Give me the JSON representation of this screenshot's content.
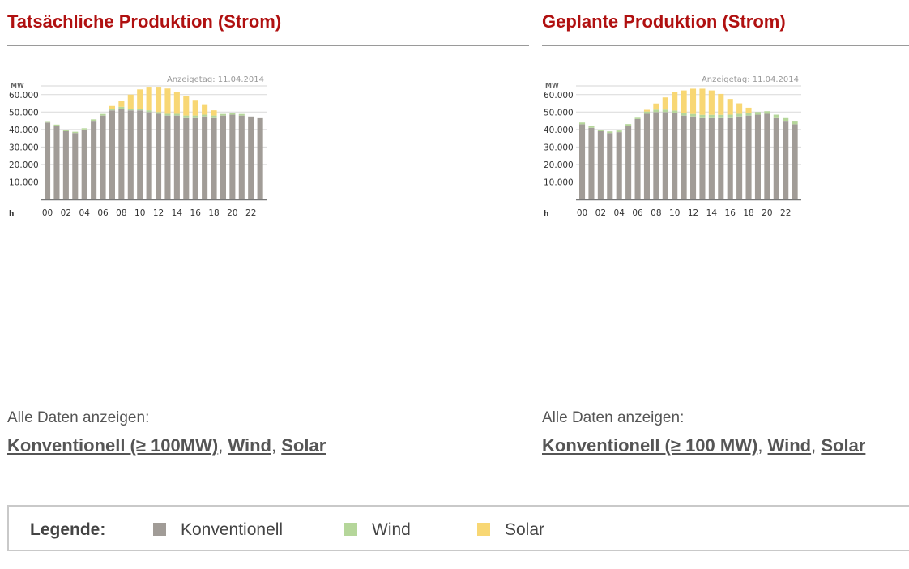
{
  "colors": {
    "title": "#b01010",
    "conventional": "#a19c97",
    "wind": "#b5d69a",
    "solar": "#f8d774"
  },
  "panels": [
    {
      "title": "Tatsächliche Produktion (Strom)",
      "all_data_label": "Alle Daten anzeigen:",
      "link_conventional": "Konventionell (≥ 100MW)",
      "link_wind": "Wind",
      "link_solar": "Solar"
    },
    {
      "title": "Geplante Produktion (Strom)",
      "all_data_label": "Alle Daten anzeigen:",
      "link_conventional": "Konventionell (≥ 100 MW)",
      "link_wind": "Wind",
      "link_solar": "Solar"
    }
  ],
  "legend": {
    "title": "Legende:",
    "items": [
      {
        "label": "Konventionell",
        "color": "#a19c97"
      },
      {
        "label": "Wind",
        "color": "#b5d69a"
      },
      {
        "label": "Solar",
        "color": "#f8d774"
      }
    ]
  },
  "chart_data": [
    {
      "type": "bar",
      "stacked": true,
      "display_date": "Anzeigetag: 11.04.2014",
      "ylabel": "MW",
      "xlabel": "h",
      "ylim": [
        0,
        65000
      ],
      "yticks": [
        "10.000",
        "20.000",
        "30.000",
        "40.000",
        "50.000",
        "60.000"
      ],
      "xtick_labels": [
        "00",
        "02",
        "04",
        "06",
        "08",
        "10",
        "12",
        "14",
        "16",
        "18",
        "20",
        "22"
      ],
      "categories": [
        "00",
        "01",
        "02",
        "03",
        "04",
        "05",
        "06",
        "07",
        "08",
        "09",
        "10",
        "11",
        "12",
        "13",
        "14",
        "15",
        "16",
        "17",
        "18",
        "19",
        "20",
        "21",
        "22",
        "23"
      ],
      "series": [
        {
          "name": "Konventionell",
          "values": [
            44000,
            42000,
            39000,
            38000,
            40000,
            45000,
            48000,
            51000,
            52000,
            51000,
            51000,
            50000,
            49000,
            48000,
            48000,
            47000,
            47000,
            47500,
            47000,
            48000,
            48500,
            48000,
            47500,
            47000
          ]
        },
        {
          "name": "Wind",
          "values": [
            800,
            800,
            700,
            700,
            700,
            800,
            900,
            1000,
            1000,
            1000,
            1000,
            1000,
            1000,
            1000,
            1000,
            1000,
            1000,
            1000,
            1000,
            900,
            900,
            900,
            0,
            0
          ]
        },
        {
          "name": "Solar",
          "values": [
            0,
            0,
            0,
            0,
            0,
            0,
            0,
            1500,
            3500,
            8000,
            11000,
            13500,
            14500,
            14500,
            12500,
            11000,
            9000,
            6000,
            3000,
            0,
            0,
            0,
            0,
            0
          ]
        }
      ]
    },
    {
      "type": "bar",
      "stacked": true,
      "display_date": "Anzeigetag: 11.04.2014",
      "ylabel": "MW",
      "xlabel": "h",
      "ylim": [
        0,
        65000
      ],
      "yticks": [
        "10.000",
        "20.000",
        "30.000",
        "40.000",
        "50.000",
        "60.000"
      ],
      "xtick_labels": [
        "00",
        "02",
        "04",
        "06",
        "08",
        "10",
        "12",
        "14",
        "16",
        "18",
        "20",
        "22"
      ],
      "categories": [
        "00",
        "01",
        "02",
        "03",
        "04",
        "05",
        "06",
        "07",
        "08",
        "09",
        "10",
        "11",
        "12",
        "13",
        "14",
        "15",
        "16",
        "17",
        "18",
        "19",
        "20",
        "21",
        "22",
        "23"
      ],
      "series": [
        {
          "name": "Konventionell",
          "values": [
            43000,
            41000,
            39000,
            38000,
            38500,
            42000,
            46000,
            49000,
            50000,
            50000,
            49500,
            48000,
            47500,
            47000,
            47000,
            47000,
            47000,
            47500,
            48000,
            48500,
            49000,
            47000,
            45000,
            43000
          ]
        },
        {
          "name": "Wind",
          "values": [
            1000,
            1000,
            900,
            900,
            900,
            1100,
            1200,
            1300,
            1400,
            1400,
            1400,
            1400,
            1400,
            1400,
            1400,
            1400,
            1500,
            1500,
            1500,
            1500,
            1500,
            1500,
            2000,
            2000
          ]
        },
        {
          "name": "Solar",
          "values": [
            0,
            0,
            0,
            0,
            0,
            0,
            0,
            1000,
            3500,
            7000,
            10500,
            13000,
            14500,
            15000,
            14000,
            12000,
            9000,
            6000,
            3000,
            0,
            0,
            0,
            0,
            0
          ]
        }
      ]
    }
  ]
}
